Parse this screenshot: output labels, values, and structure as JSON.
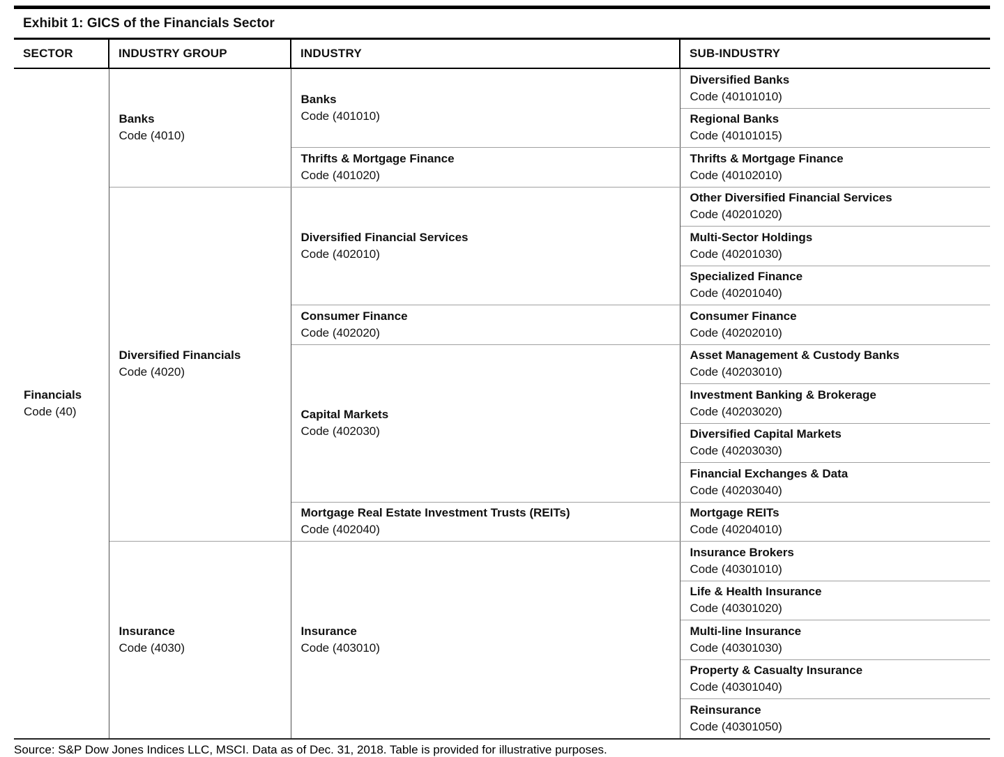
{
  "page": {
    "title": "Exhibit 1: GICS of the Financials Sector",
    "source_note": "Source: S&P Dow Jones Indices LLC, MSCI.  Data as of Dec. 31, 2018.  Table is provided for illustrative purposes."
  },
  "colors": {
    "heavy_rule": "#000000",
    "grid_horizontal": "#a0a0a0",
    "grid_vertical": "#4d4d4d",
    "text": "#111111",
    "background": "#ffffff"
  },
  "table": {
    "headers": [
      "SECTOR",
      "INDUSTRY GROUP",
      "INDUSTRY",
      "SUB-INDUSTRY"
    ],
    "sector": {
      "name": "Financials",
      "code": "Code (40)"
    },
    "groups": [
      {
        "name": "Banks",
        "code": "Code (4010)",
        "industries": [
          {
            "name": "Banks",
            "code": "Code (401010)",
            "subs": [
              {
                "name": "Diversified Banks",
                "code": "Code (40101010)"
              },
              {
                "name": "Regional Banks",
                "code": "Code (40101015)"
              }
            ]
          },
          {
            "name": "Thrifts & Mortgage Finance",
            "code": "Code (401020)",
            "subs": [
              {
                "name": "Thrifts & Mortgage Finance",
                "code": "Code (40102010)"
              }
            ]
          }
        ]
      },
      {
        "name": "Diversified Financials",
        "code": "Code (4020)",
        "industries": [
          {
            "name": "Diversified Financial Services",
            "code": "Code (402010)",
            "subs": [
              {
                "name": "Other Diversified Financial Services",
                "code": "Code (40201020)"
              },
              {
                "name": "Multi-Sector Holdings",
                "code": "Code (40201030)"
              },
              {
                "name": "Specialized Finance",
                "code": "Code (40201040)"
              }
            ]
          },
          {
            "name": "Consumer Finance",
            "code": "Code (402020)",
            "subs": [
              {
                "name": "Consumer Finance",
                "code": "Code (40202010)"
              }
            ]
          },
          {
            "name": "Capital Markets",
            "code": "Code (402030)",
            "subs": [
              {
                "name": "Asset Management & Custody Banks",
                "code": "Code (40203010)"
              },
              {
                "name": "Investment Banking & Brokerage",
                "code": "Code (40203020)"
              },
              {
                "name": "Diversified Capital Markets",
                "code": "Code (40203030)"
              },
              {
                "name": "Financial Exchanges & Data",
                "code": "Code (40203040)"
              }
            ]
          },
          {
            "name": "Mortgage Real Estate Investment Trusts (REITs)",
            "code": "Code (402040)",
            "subs": [
              {
                "name": "Mortgage REITs",
                "code": "Code (40204010)"
              }
            ]
          }
        ]
      },
      {
        "name": "Insurance",
        "code": "Code (4030)",
        "industries": [
          {
            "name": "Insurance",
            "code": "Code (403010)",
            "subs": [
              {
                "name": "Insurance Brokers",
                "code": "Code (40301010)"
              },
              {
                "name": "Life & Health Insurance",
                "code": "Code (40301020)"
              },
              {
                "name": "Multi-line Insurance",
                "code": "Code (40301030)"
              },
              {
                "name": "Property & Casualty Insurance",
                "code": "Code (40301040)"
              },
              {
                "name": "Reinsurance",
                "code": "Code (40301050)"
              }
            ]
          }
        ]
      }
    ]
  }
}
